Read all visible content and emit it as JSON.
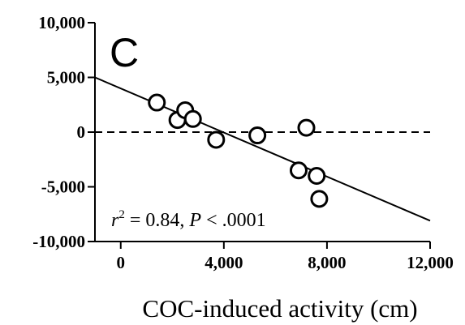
{
  "chart_data": {
    "type": "scatter",
    "title": "",
    "panel_label": "C",
    "xlabel": "COC-induced activity (cm)",
    "ylabel": "",
    "xlim": [
      -1000,
      12000
    ],
    "ylim": [
      -10000,
      10000
    ],
    "x_ticks": [
      0,
      4000,
      8000,
      12000
    ],
    "x_tick_labels": [
      "0",
      "4,000",
      "8,000",
      "12,000"
    ],
    "y_ticks": [
      10000,
      5000,
      0,
      -5000,
      -10000
    ],
    "y_tick_labels": [
      "10,000",
      "5,000",
      "0",
      "-5,000",
      "-10,000"
    ],
    "grid": false,
    "zero_line": "dashed",
    "points": [
      {
        "x": 1400,
        "y": 2700
      },
      {
        "x": 2200,
        "y": 1100
      },
      {
        "x": 2500,
        "y": 2000
      },
      {
        "x": 2800,
        "y": 1200
      },
      {
        "x": 3700,
        "y": -700
      },
      {
        "x": 5300,
        "y": -300
      },
      {
        "x": 6900,
        "y": -3500
      },
      {
        "x": 7200,
        "y": 400
      },
      {
        "x": 7600,
        "y": -4000
      },
      {
        "x": 7700,
        "y": -6100
      }
    ],
    "fit_line": {
      "x": [
        -1000,
        12000
      ],
      "y": [
        5000,
        -8100
      ]
    },
    "annotation": {
      "r2_label": "r",
      "r2_exp": "2",
      "r2_rest": " = 0.84, ",
      "p_label": "P",
      "p_rest": " < .0001"
    },
    "colors": {
      "axis": "#000000",
      "marker_stroke": "#000000",
      "marker_fill": "#ffffff"
    }
  }
}
